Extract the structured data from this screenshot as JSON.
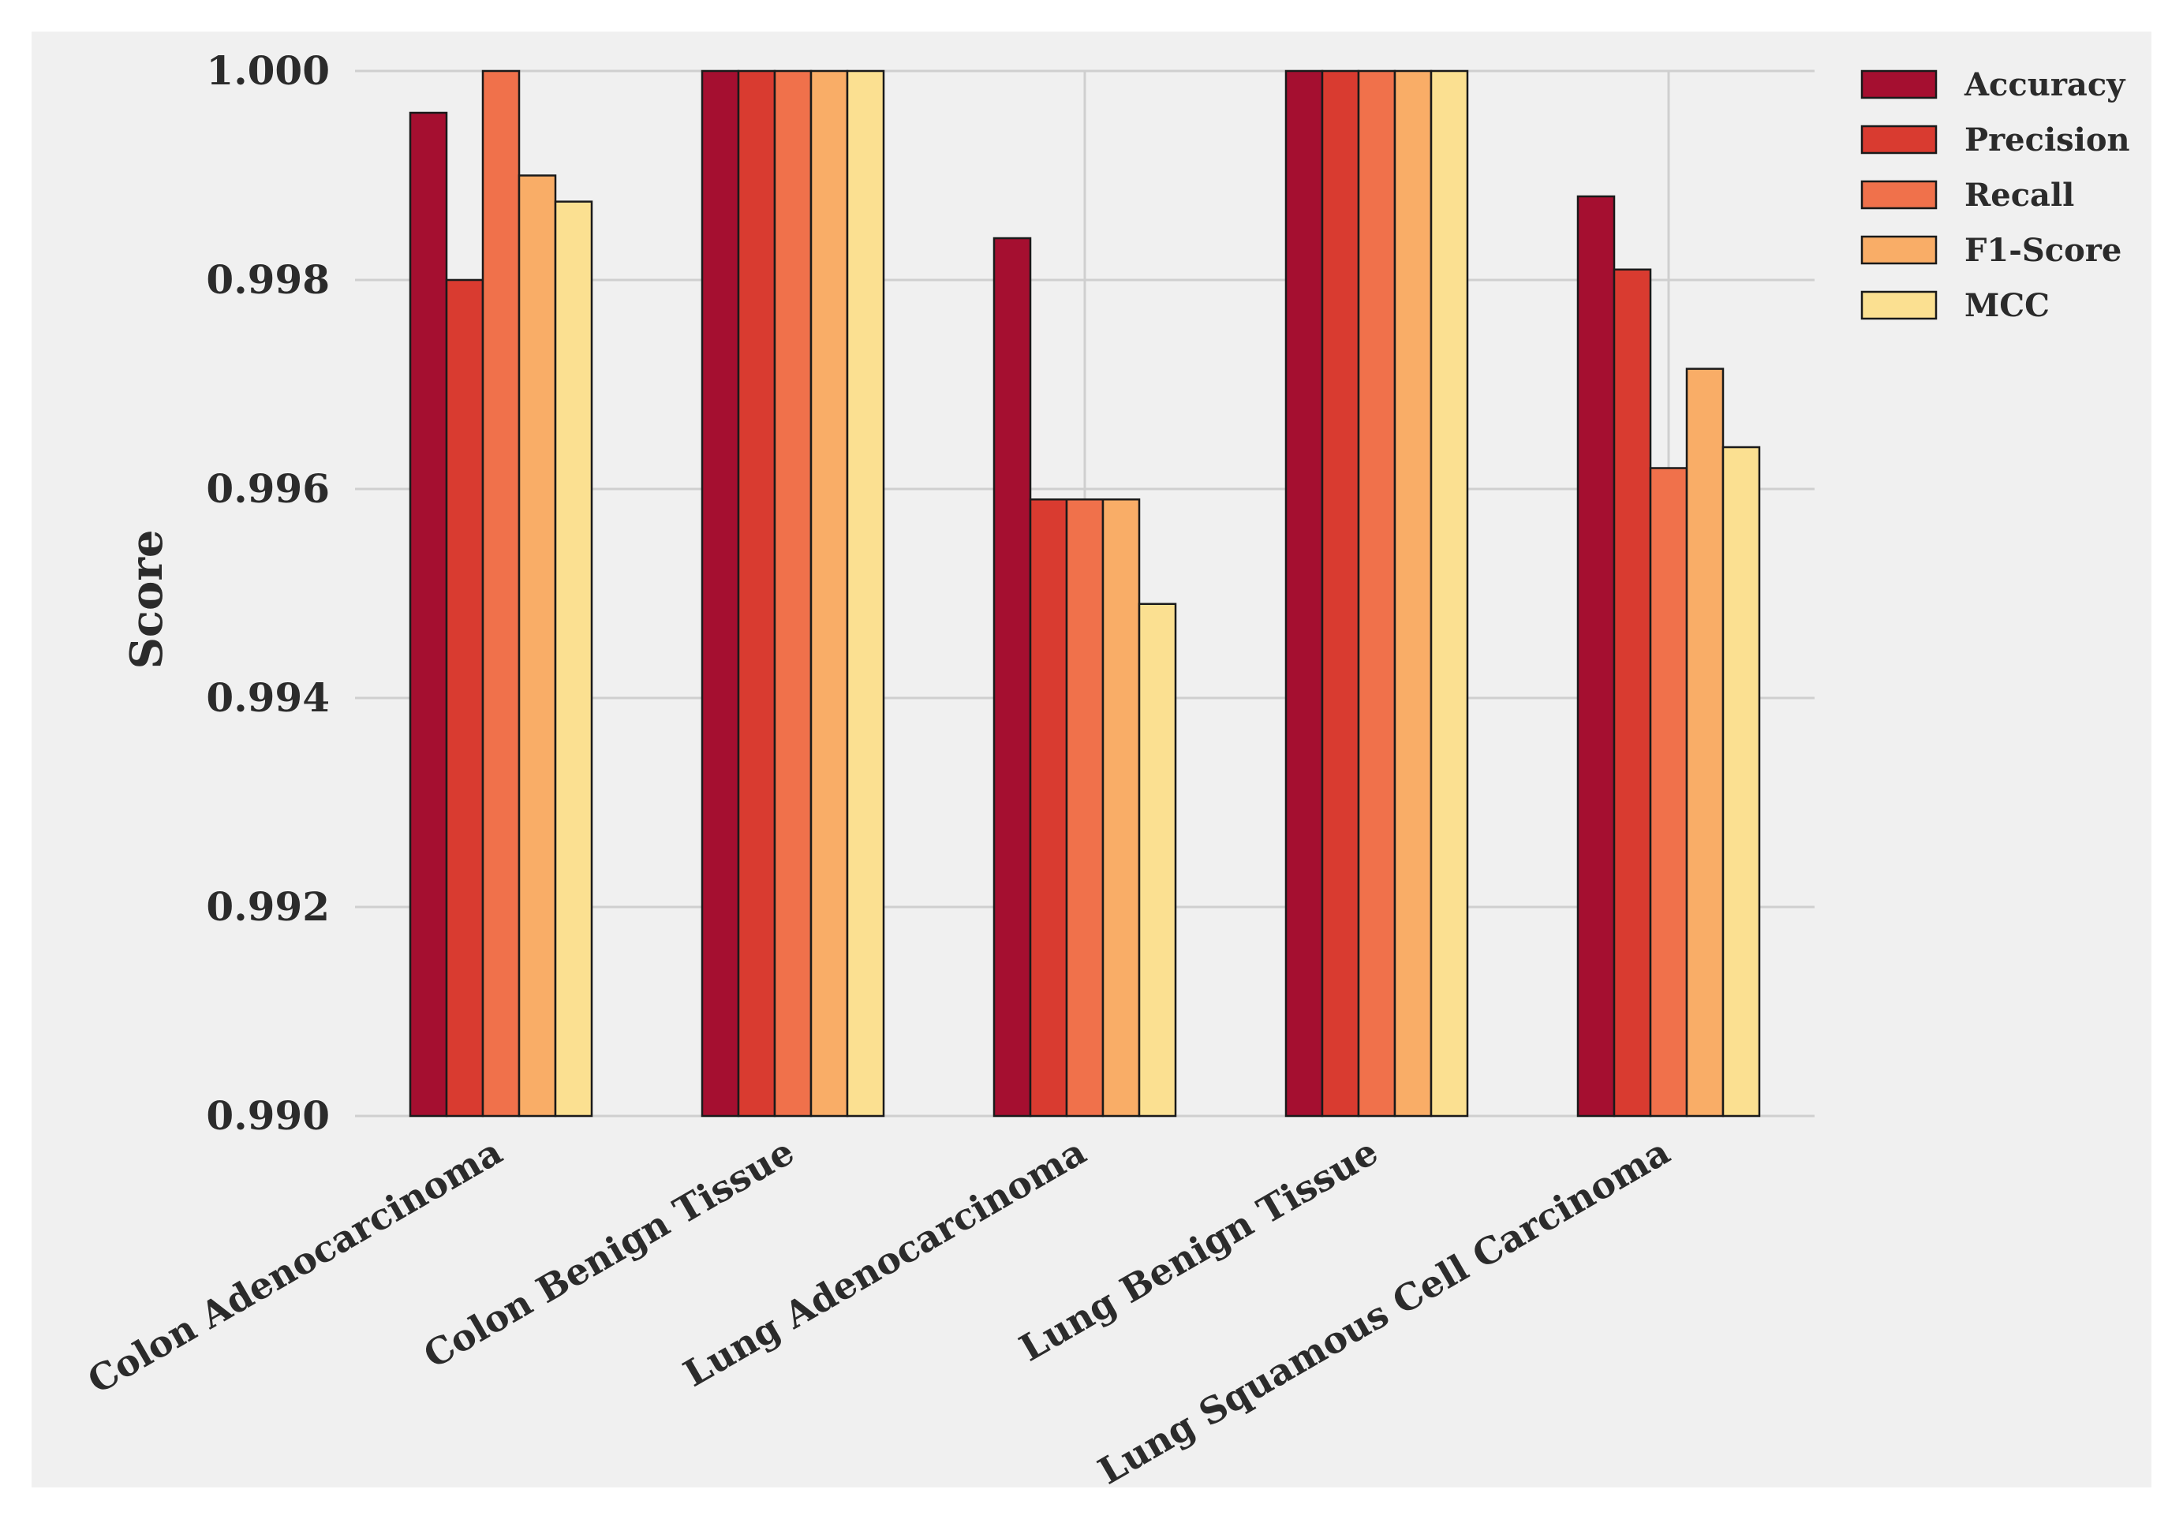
{
  "chart_data": {
    "type": "bar",
    "title": "",
    "xlabel": "",
    "ylabel": "Score",
    "ylim": [
      0.99,
      1.0
    ],
    "yticks": [
      "0.990",
      "0.992",
      "0.994",
      "0.996",
      "0.998",
      "1.000"
    ],
    "ytick_values": [
      0.99,
      0.992,
      0.994,
      0.996,
      0.998,
      1.0
    ],
    "grid": true,
    "legend_position": "top-right",
    "categories": [
      "Colon Adenocarcinoma",
      "Colon Benign Tissue",
      "Lung Adenocarcinoma",
      "Lung Benign Tissue",
      "Lung Squamous Cell Carcinoma"
    ],
    "series": [
      {
        "name": "Accuracy",
        "color": "#a50f30",
        "values": [
          0.9996,
          1.0,
          0.9984,
          1.0,
          0.9988
        ]
      },
      {
        "name": "Precision",
        "color": "#d93b30",
        "values": [
          0.998,
          1.0,
          0.9959,
          1.0,
          0.9981
        ]
      },
      {
        "name": "Recall",
        "color": "#f0714b",
        "values": [
          1.0,
          1.0,
          0.9959,
          1.0,
          0.9962
        ]
      },
      {
        "name": "F1-Score",
        "color": "#f9ad67",
        "values": [
          0.999,
          1.0,
          0.9959,
          1.0,
          0.99715
        ]
      },
      {
        "name": "MCC",
        "color": "#fbe091",
        "values": [
          0.99875,
          1.0,
          0.9949,
          1.0,
          0.9964
        ]
      }
    ]
  }
}
